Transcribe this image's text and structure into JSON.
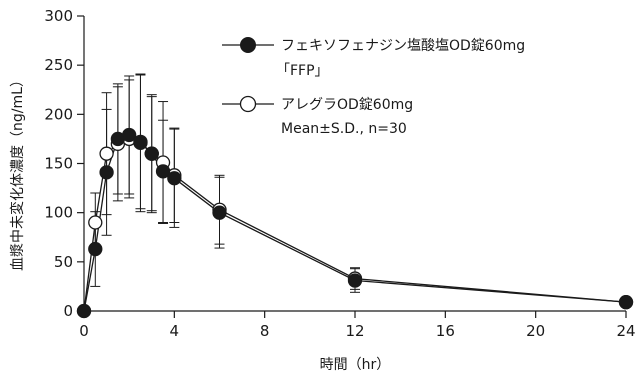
{
  "chart_data": {
    "type": "line",
    "xlabel": "時間（hr）",
    "ylabel": "血漿中未変化体濃度（ng/mL）",
    "xlim": [
      0,
      24
    ],
    "ylim": [
      0,
      300
    ],
    "xticks": [
      0,
      4,
      8,
      12,
      16,
      20,
      24
    ],
    "yticks": [
      0,
      50,
      100,
      150,
      200,
      250,
      300
    ],
    "grid": false,
    "legend_position": "top-right",
    "legend_note": "Mean±S.D., n=30",
    "series": [
      {
        "name": "フェキソフェナジン塩酸塩OD錠60mg",
        "name_line2": "「FFP」",
        "marker": "filled-circle",
        "color": "#1a1a1a",
        "x": [
          0,
          0.5,
          1,
          1.5,
          2,
          2.5,
          3,
          3.5,
          4,
          6,
          12,
          24
        ],
        "y": [
          0,
          63,
          141,
          175,
          179,
          171,
          160,
          142,
          135,
          100,
          31,
          9
        ],
        "sd": [
          0,
          38,
          64,
          56,
          60,
          70,
          60,
          52,
          50,
          36,
          12,
          3
        ]
      },
      {
        "name": "アレグラOD錠60mg",
        "marker": "open-circle",
        "color": "#1a1a1a",
        "x": [
          0,
          0.5,
          1,
          1.5,
          2,
          2.5,
          3,
          3.5,
          4,
          6,
          12,
          24
        ],
        "y": [
          0,
          90,
          160,
          170,
          175,
          172,
          160,
          151,
          138,
          103,
          33,
          9
        ],
        "sd": [
          0,
          30,
          62,
          58,
          60,
          68,
          58,
          62,
          48,
          35,
          11,
          3
        ]
      }
    ]
  }
}
